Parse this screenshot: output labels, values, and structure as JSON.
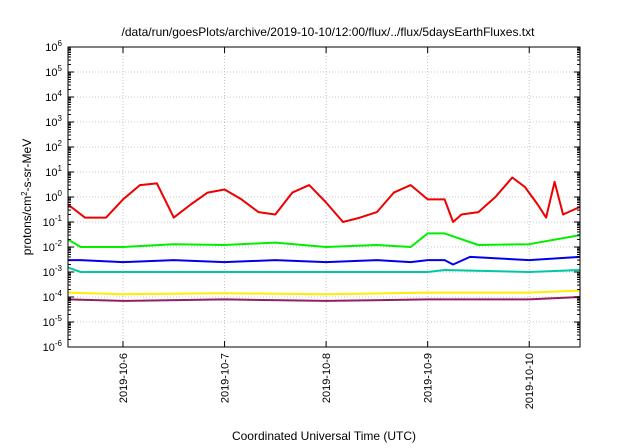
{
  "chart_data": {
    "type": "line",
    "title": "/data/run/goesPlots/archive/2019-10-10/12:00/flux/../flux/5daysEarthFluxes.txt",
    "xlabel": "Coordinated Universal Time (UTC)",
    "ylabel": {
      "pre": "protons/cm",
      "sup": "2",
      "post": "-s-sr-MeV"
    },
    "yscale": "log",
    "ylim_exp": [
      -6,
      6
    ],
    "y_ticks": [
      {
        "base": "10",
        "exp": "-6"
      },
      {
        "base": "10",
        "exp": "-5"
      },
      {
        "base": "10",
        "exp": "-4"
      },
      {
        "base": "10",
        "exp": "-3"
      },
      {
        "base": "10",
        "exp": "-2"
      },
      {
        "base": "10",
        "exp": "-1"
      },
      {
        "base": "10",
        "exp": "0"
      },
      {
        "base": "10",
        "exp": "1"
      },
      {
        "base": "10",
        "exp": "2"
      },
      {
        "base": "10",
        "exp": "3"
      },
      {
        "base": "10",
        "exp": "4"
      },
      {
        "base": "10",
        "exp": "5"
      },
      {
        "base": "10",
        "exp": "6"
      }
    ],
    "x_start": "2019-10-05 11:00",
    "x_end": "2019-10-10 12:00",
    "x_ticks": [
      "2019-10-6",
      "2019-10-7",
      "2019-10-8",
      "2019-10-9",
      "2019-10-10"
    ],
    "grid": true,
    "series": [
      {
        "color": "#ee0000",
        "t": [
          "2019-10-05 11:00",
          "2019-10-05 15:00",
          "2019-10-05 20:00",
          "2019-10-06 00:00",
          "2019-10-06 04:00",
          "2019-10-06 08:00",
          "2019-10-06 12:00",
          "2019-10-06 16:00",
          "2019-10-06 20:00",
          "2019-10-07 00:00",
          "2019-10-07 04:00",
          "2019-10-07 08:00",
          "2019-10-07 12:00",
          "2019-10-07 16:00",
          "2019-10-07 20:00",
          "2019-10-08 00:00",
          "2019-10-08 04:00",
          "2019-10-08 08:00",
          "2019-10-08 12:00",
          "2019-10-08 16:00",
          "2019-10-08 20:00",
          "2019-10-09 00:00",
          "2019-10-09 04:00",
          "2019-10-09 06:00",
          "2019-10-09 08:00",
          "2019-10-09 12:00",
          "2019-10-09 16:00",
          "2019-10-09 20:00",
          "2019-10-09 23:00",
          "2019-10-10 02:00",
          "2019-10-10 04:00",
          "2019-10-10 06:00",
          "2019-10-10 08:00",
          "2019-10-10 12:00"
        ],
        "y": [
          0.5,
          0.15,
          0.15,
          0.8,
          3,
          3.5,
          0.15,
          0.5,
          1.5,
          2,
          0.8,
          0.25,
          0.2,
          1.5,
          3,
          0.6,
          0.1,
          0.15,
          0.25,
          1.5,
          3,
          0.8,
          0.8,
          0.1,
          0.2,
          0.25,
          1,
          6,
          2.5,
          0.5,
          0.15,
          4,
          0.2,
          0.4
        ]
      },
      {
        "color": "#00ee00",
        "t": [
          "2019-10-05 11:00",
          "2019-10-05 14:00",
          "2019-10-06 00:00",
          "2019-10-06 12:00",
          "2019-10-07 00:00",
          "2019-10-07 12:00",
          "2019-10-08 00:00",
          "2019-10-08 12:00",
          "2019-10-08 20:00",
          "2019-10-09 00:00",
          "2019-10-09 04:00",
          "2019-10-09 12:00",
          "2019-10-10 00:00",
          "2019-10-10 12:00"
        ],
        "y": [
          0.02,
          0.01,
          0.01,
          0.013,
          0.012,
          0.015,
          0.01,
          0.012,
          0.01,
          0.035,
          0.035,
          0.012,
          0.013,
          0.03
        ]
      },
      {
        "color": "#0000ee",
        "t": [
          "2019-10-05 11:00",
          "2019-10-05 14:00",
          "2019-10-06 00:00",
          "2019-10-06 12:00",
          "2019-10-07 00:00",
          "2019-10-07 12:00",
          "2019-10-08 00:00",
          "2019-10-08 12:00",
          "2019-10-08 20:00",
          "2019-10-09 00:00",
          "2019-10-09 04:00",
          "2019-10-09 06:00",
          "2019-10-09 10:00",
          "2019-10-10 00:00",
          "2019-10-10 12:00"
        ],
        "y": [
          0.003,
          0.003,
          0.0025,
          0.003,
          0.0025,
          0.003,
          0.0025,
          0.003,
          0.0025,
          0.003,
          0.003,
          0.002,
          0.004,
          0.003,
          0.004
        ]
      },
      {
        "color": "#00c8a0",
        "t": [
          "2019-10-05 11:00",
          "2019-10-05 14:00",
          "2019-10-06 00:00",
          "2019-10-07 00:00",
          "2019-10-08 00:00",
          "2019-10-09 00:00",
          "2019-10-09 04:00",
          "2019-10-10 00:00",
          "2019-10-10 12:00"
        ],
        "y": [
          0.0015,
          0.001,
          0.001,
          0.001,
          0.001,
          0.001,
          0.0012,
          0.001,
          0.0012
        ]
      },
      {
        "color": "#ffee00",
        "t": [
          "2019-10-05 11:00",
          "2019-10-06 00:00",
          "2019-10-07 00:00",
          "2019-10-08 00:00",
          "2019-10-09 00:00",
          "2019-10-10 00:00",
          "2019-10-10 12:00"
        ],
        "y": [
          0.00015,
          0.00013,
          0.00014,
          0.00013,
          0.00015,
          0.00015,
          0.00018
        ]
      },
      {
        "color": "#902060",
        "t": [
          "2019-10-05 11:00",
          "2019-10-06 00:00",
          "2019-10-07 00:00",
          "2019-10-08 00:00",
          "2019-10-09 00:00",
          "2019-10-10 00:00",
          "2019-10-10 12:00"
        ],
        "y": [
          8e-05,
          7e-05,
          8e-05,
          7e-05,
          8e-05,
          8e-05,
          0.0001
        ]
      }
    ]
  }
}
